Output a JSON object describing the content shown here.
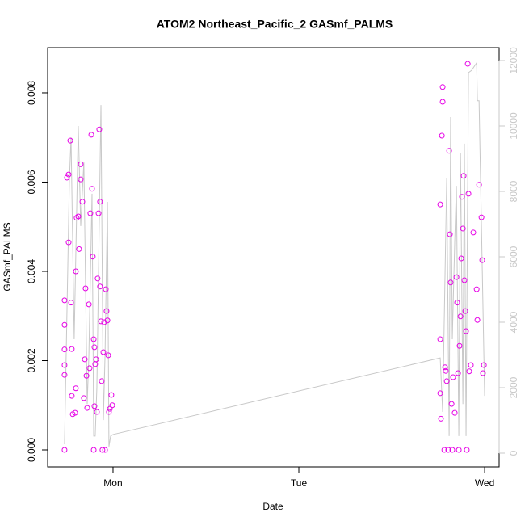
{
  "chart_data": {
    "type": "scatter",
    "title": "ATOM2 Northeast_Pacific_2 GASmf_PALMS",
    "xlabel": "Date",
    "ylabel": "GASmf_PALMS",
    "xlim": [
      0.648,
      3.078
    ],
    "xticks": [
      {
        "value": 1,
        "label": "Mon"
      },
      {
        "value": 2,
        "label": "Tue"
      },
      {
        "value": 3,
        "label": "Wed"
      }
    ],
    "ylim": [
      -0.00038,
      0.009013
    ],
    "yticks": [
      {
        "value": 0,
        "label": "0.000"
      },
      {
        "value": 0.002,
        "label": "0.002"
      },
      {
        "value": 0.004,
        "label": "0.004"
      },
      {
        "value": 0.006,
        "label": "0.006"
      },
      {
        "value": 0.008,
        "label": "0.008"
      }
    ],
    "y2lim": [
      -420,
      12395
    ],
    "y2ticks": [
      0,
      2000,
      4000,
      6000,
      8000,
      10000,
      12000
    ],
    "series": [
      {
        "type": "scatter",
        "color": "#e600e6",
        "x": [
          0.739,
          0.739,
          0.739,
          0.739,
          0.739,
          0.739,
          0.752,
          0.761,
          0.761,
          0.77,
          0.774,
          0.778,
          0.778,
          0.783,
          0.796,
          0.8,
          0.8,
          0.804,
          0.813,
          0.817,
          0.826,
          0.826,
          0.835,
          0.843,
          0.848,
          0.852,
          0.857,
          0.861,
          0.87,
          0.874,
          0.878,
          0.883,
          0.887,
          0.891,
          0.896,
          0.896,
          0.9,
          0.9,
          0.904,
          0.909,
          0.913,
          0.917,
          0.922,
          0.926,
          0.93,
          0.93,
          0.935,
          0.939,
          0.943,
          0.948,
          0.952,
          0.957,
          0.961,
          0.965,
          0.97,
          0.974,
          0.978,
          0.983,
          0.991,
          0.996,
          2.761,
          2.761,
          2.761,
          2.765,
          2.77,
          2.774,
          2.774,
          2.783,
          2.787,
          2.791,
          2.796,
          2.804,
          2.809,
          2.813,
          2.817,
          2.822,
          2.826,
          2.83,
          2.839,
          2.848,
          2.852,
          2.857,
          2.861,
          2.865,
          2.87,
          2.874,
          2.878,
          2.883,
          2.887,
          2.891,
          2.896,
          2.9,
          2.904,
          2.909,
          2.913,
          2.917,
          2.926,
          2.939,
          2.957,
          2.961,
          2.97,
          2.983,
          2.987,
          2.991,
          2.996
        ],
        "values": [
          0,
          0.00335,
          0.0028,
          0.00225,
          0.0019,
          0.00168,
          0.0061,
          0.00617,
          0.00465,
          0.00693,
          0.0033,
          0.00226,
          0.00121,
          0.0008,
          0.00083,
          0.00138,
          0.004,
          0.0052,
          0.00523,
          0.0045,
          0.0064,
          0.00606,
          0.00556,
          0.00116,
          0.00203,
          0.00362,
          0.00166,
          0.00094,
          0.00326,
          0.00183,
          0.0053,
          0.00706,
          0.00585,
          0.00433,
          0.00248,
          0,
          0.0023,
          0.00098,
          0.00192,
          0.00203,
          0.00085,
          0.00384,
          0.0053,
          0.00718,
          0.00556,
          0.00366,
          0.00288,
          0.00154,
          0,
          0.00219,
          0.00286,
          0,
          0.0036,
          0.00311,
          0.0029,
          0.00212,
          0.00085,
          0.00092,
          0.00123,
          0.001,
          0.0055,
          0.00248,
          0.00127,
          0.0007,
          0.00704,
          0.00813,
          0.0078,
          0,
          0.00185,
          0.00177,
          0.00154,
          0,
          0.0067,
          0.00483,
          0.00375,
          0.00103,
          0,
          0.00163,
          0.00083,
          0.00387,
          0.0033,
          0.00172,
          0,
          0.00233,
          0.00299,
          0.00429,
          0.00567,
          0.00496,
          0.00614,
          0.0038,
          0.00311,
          0.00266,
          0,
          0.00865,
          0.00574,
          0.00176,
          0.0019,
          0.00487,
          0.0036,
          0.00291,
          0.00594,
          0.00521,
          0.00425,
          0.00172,
          0.0019
        ]
      },
      {
        "type": "line",
        "color": "#c8c8c8",
        "axis": "y2",
        "x": [
          0.739,
          0.765,
          0.774,
          0.791,
          0.813,
          0.826,
          0.843,
          0.861,
          0.87,
          0.887,
          0.896,
          0.904,
          0.913,
          0.935,
          0.948,
          0.957,
          0.97,
          0.978,
          0.987,
          1.0,
          2.761,
          2.774,
          2.796,
          2.809,
          2.817,
          2.826,
          2.839,
          2.848,
          2.861,
          2.87,
          2.883,
          2.891,
          2.9,
          2.913,
          2.93,
          2.957,
          2.961,
          2.97,
          2.987,
          3.0
        ],
        "values": [
          270,
          8300,
          9650,
          3480,
          10000,
          6940,
          8910,
          1500,
          2990,
          7930,
          520,
          520,
          2000,
          10640,
          1010,
          2990,
          7680,
          200,
          520,
          570,
          2910,
          1260,
          8420,
          520,
          10270,
          3480,
          6440,
          8170,
          520,
          9160,
          1500,
          9460,
          520,
          11630,
          11700,
          11930,
          10770,
          10770,
          5700,
          1750
        ]
      }
    ]
  }
}
